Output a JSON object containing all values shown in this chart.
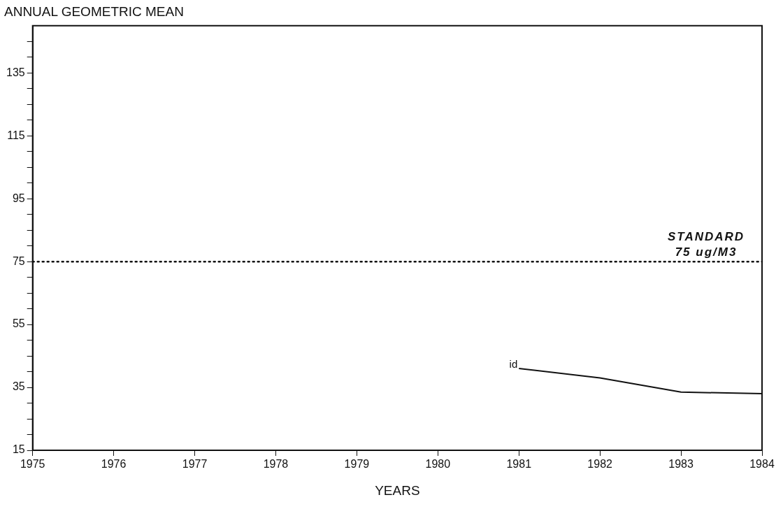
{
  "chart_data": {
    "type": "line",
    "title": "ANNUAL GEOMETRIC MEAN",
    "xlabel": "YEARS",
    "x": [
      1981,
      1982,
      1983,
      1984
    ],
    "series": [
      {
        "color": "#111111",
        "values": [
          41,
          38,
          33.5,
          33
        ]
      }
    ],
    "xlim": [
      1975,
      1984
    ],
    "xticks": [
      1975,
      1976,
      1977,
      1978,
      1979,
      1980,
      1981,
      1982,
      1983,
      1984
    ],
    "ylim": [
      15,
      150
    ],
    "yticks": [
      15,
      {
        "value": 20,
        "label": null
      },
      {
        "value": 25,
        "label": null
      },
      {
        "value": 30,
        "label": null
      },
      35,
      {
        "value": 40,
        "label": null
      },
      {
        "value": 45,
        "label": null
      },
      {
        "value": 50,
        "label": null
      },
      55,
      {
        "value": 60,
        "label": null
      },
      {
        "value": 65,
        "label": null
      },
      {
        "value": 70,
        "label": null
      },
      75,
      {
        "value": 80,
        "label": null
      },
      {
        "value": 85,
        "label": null
      },
      {
        "value": 90,
        "label": null
      },
      95,
      {
        "value": 100,
        "label": null
      },
      {
        "value": 105,
        "label": null
      },
      {
        "value": 110,
        "label": null
      },
      115,
      {
        "value": 120,
        "label": null
      },
      {
        "value": 125,
        "label": null
      },
      {
        "value": 130,
        "label": null
      },
      135,
      {
        "value": 140,
        "label": null
      },
      {
        "value": 145,
        "label": null
      }
    ],
    "ref_lines": [
      {
        "axis": "y",
        "value": 75,
        "label": "STANDARD 75 ug/M3",
        "color": "#111111",
        "line_style": "dotted"
      }
    ],
    "annotations": [
      {
        "text": "id",
        "x": 1981,
        "y": 41
      }
    ],
    "grid": false,
    "legend": false,
    "marker": "none",
    "line_style": "solid"
  }
}
